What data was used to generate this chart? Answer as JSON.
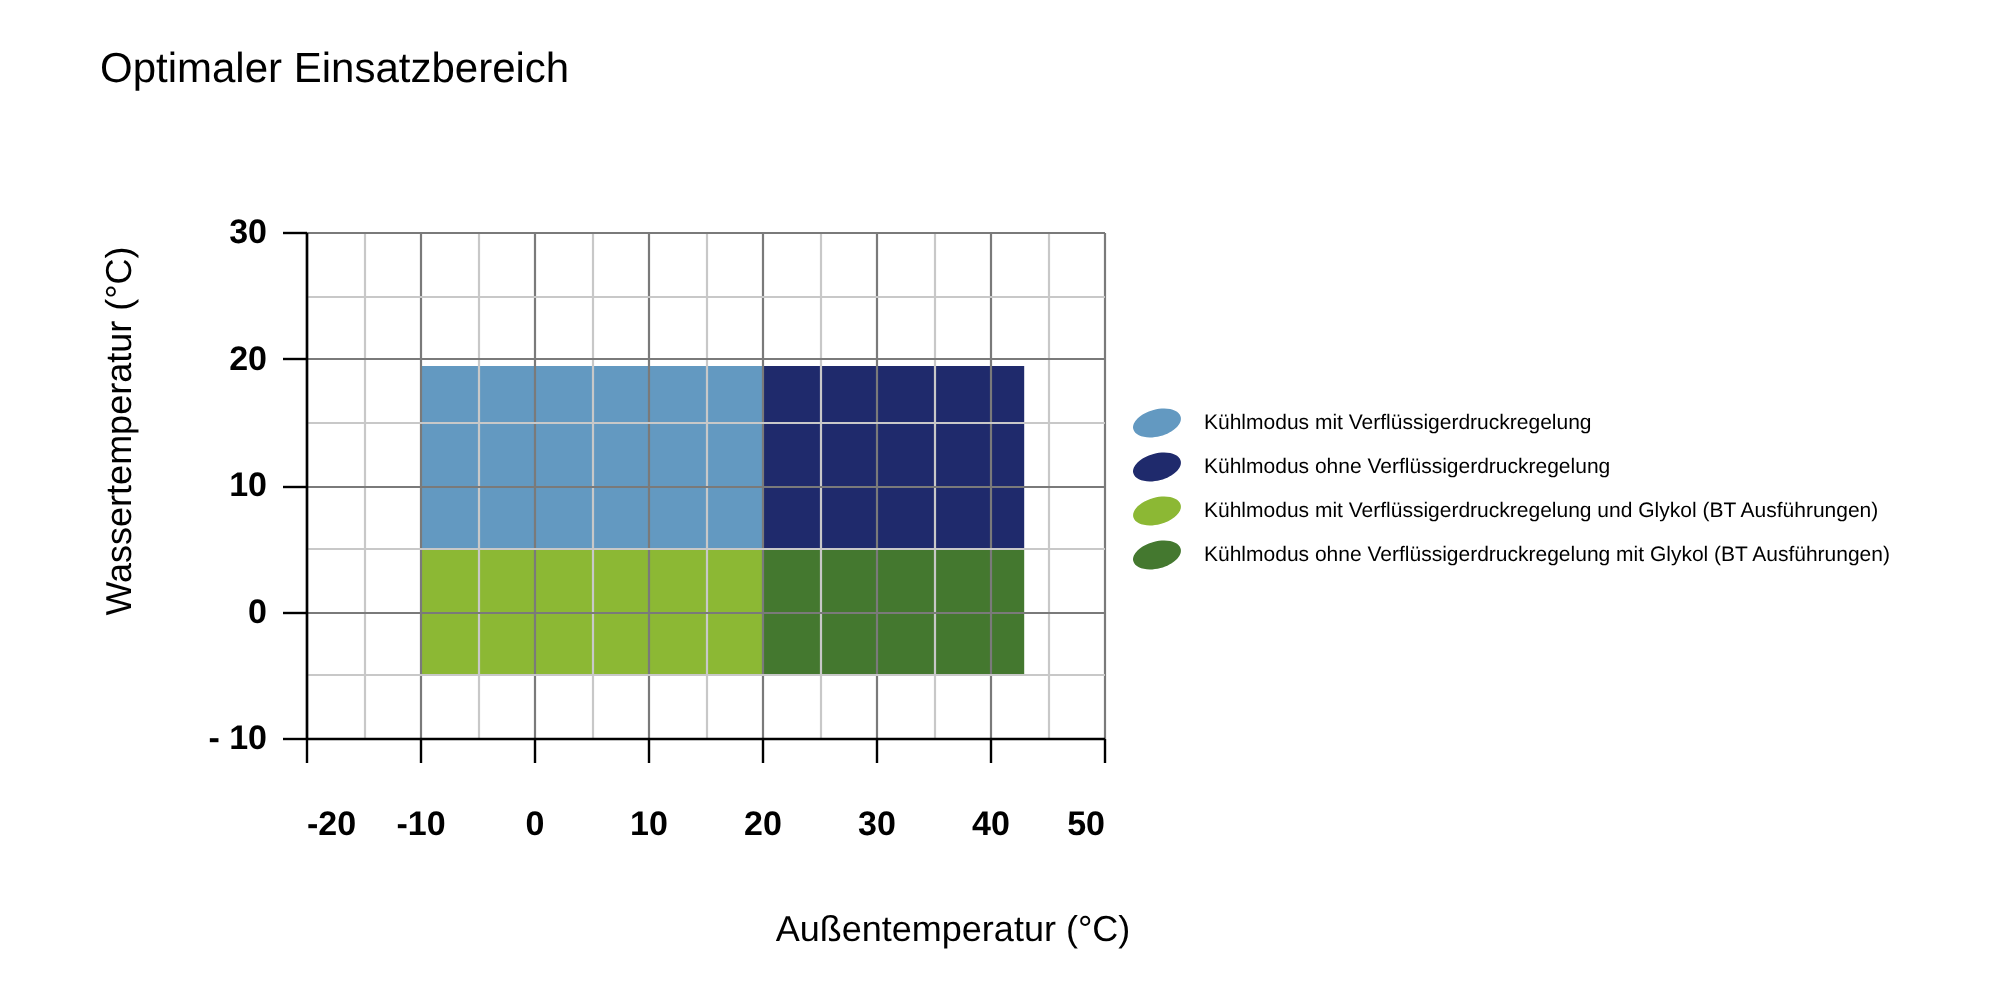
{
  "chart_data": {
    "type": "area",
    "title": "Optimaler Einsatzbereich",
    "xlabel": "Außentemperatur (°C)",
    "ylabel": "Wassertemperatur (°C)",
    "xlim": [
      -20,
      50
    ],
    "ylim": [
      -10,
      30
    ],
    "xticks": [
      -20,
      {
        "value": -15,
        "label": null
      },
      -10,
      {
        "value": -5,
        "label": null
      },
      0,
      {
        "value": 5,
        "label": null
      },
      10,
      {
        "value": 15,
        "label": null
      },
      20,
      {
        "value": 25,
        "label": null
      },
      30,
      {
        "value": 35,
        "label": null
      },
      40,
      {
        "value": 45,
        "label": null
      },
      50
    ],
    "yticks": [
      {
        "value": -10,
        "label": "- 10"
      },
      {
        "value": -5,
        "label": null
      },
      0,
      {
        "value": 5,
        "label": null
      },
      10,
      {
        "value": 15,
        "label": null
      },
      20,
      {
        "value": 25,
        "label": null
      },
      30
    ],
    "grid": true,
    "legend": "right",
    "series": [
      {
        "name": "Kühlmodus mit Verflüssigerdruckregelung",
        "color": "#6399c1",
        "x": [
          -10,
          20
        ],
        "values": [
          null,
          null
        ],
        "lower": [
          5,
          5
        ],
        "upper": [
          19.4,
          19.4
        ]
      },
      {
        "name": "Kühlmodus ohne Verflüssigerdruckregelung",
        "color": "#1f2a6c",
        "x": [
          20,
          43
        ],
        "values": [
          null,
          null
        ],
        "lower": [
          5,
          5
        ],
        "upper": [
          19.4,
          19.4
        ]
      },
      {
        "name": "Kühlmodus mit Verflüssigerdruckregelung und Glykol (BT Ausführungen)",
        "color": "#8cb834",
        "x": [
          -10,
          20
        ],
        "values": [
          null,
          null
        ],
        "lower": [
          -5,
          -5
        ],
        "upper": [
          5,
          5
        ]
      },
      {
        "name": "Kühlmodus ohne Verflüssigerdruckregelung mit Glykol (BT Ausführungen)",
        "color": "#44782f",
        "x": [
          20,
          43
        ],
        "values": [
          null,
          null
        ],
        "lower": [
          -5,
          -5
        ],
        "upper": [
          5,
          5
        ]
      }
    ]
  }
}
